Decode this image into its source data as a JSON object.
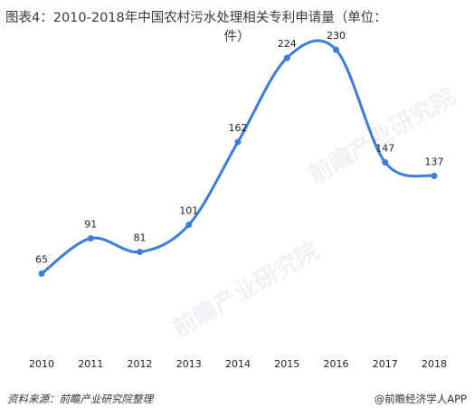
{
  "title_line1": "图表4：2010-2018年中国农村污水处理相关专利申请量（单位：",
  "title_line2": "件）",
  "chart_data": {
    "type": "line",
    "categories": [
      "2010",
      "2011",
      "2012",
      "2013",
      "2014",
      "2015",
      "2016",
      "2017",
      "2018"
    ],
    "values": [
      65,
      91,
      81,
      101,
      162,
      224,
      230,
      147,
      137
    ],
    "xlabel": "",
    "ylabel": "",
    "ylim": [
      0,
      260
    ],
    "grid": false,
    "legend": "none",
    "color": "#3c7dd9"
  },
  "footer": {
    "source": "资料来源：前瞻产业研究院整理",
    "brand": "@前瞻经济学人APP"
  },
  "watermark": {
    "text": "前瞻产业研究院"
  }
}
